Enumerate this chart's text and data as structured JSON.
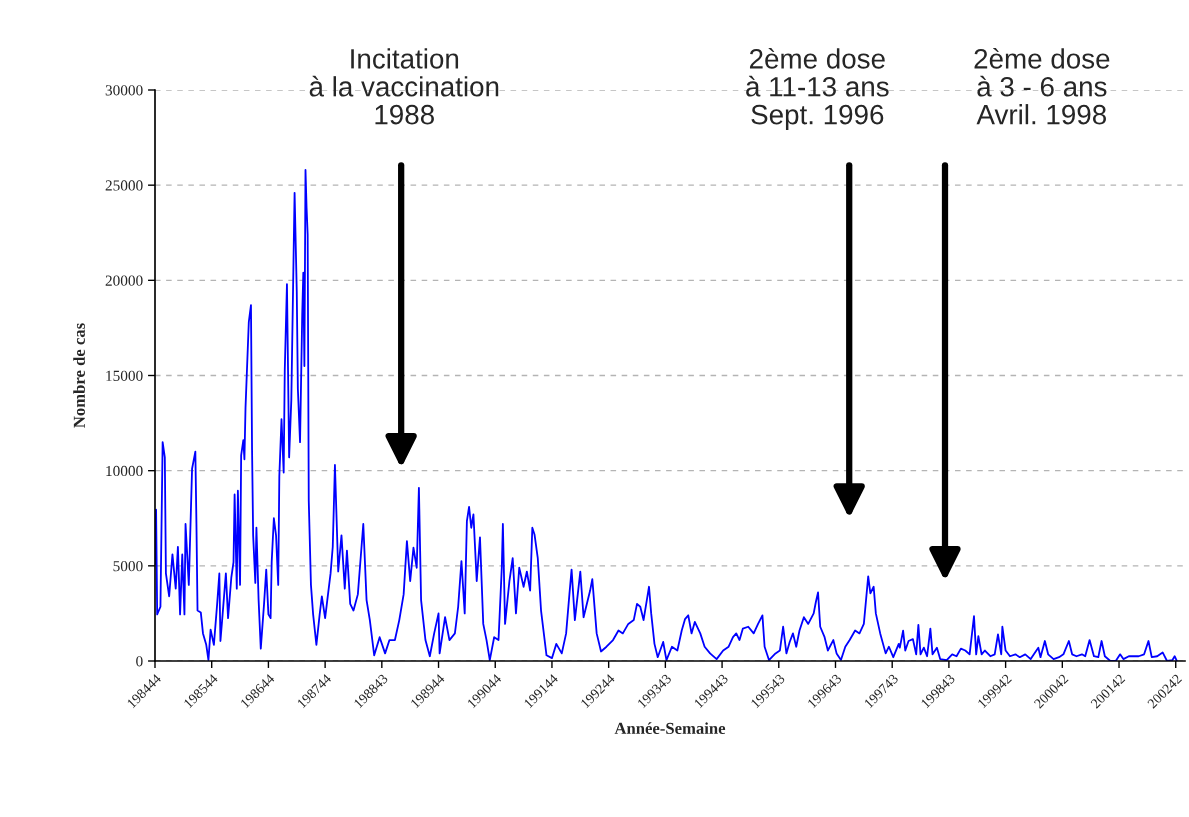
{
  "chart_data": {
    "type": "line",
    "xlabel": "Année-Semaine",
    "ylabel": "Nombre de cas",
    "ylim": [
      0,
      30000
    ],
    "yticks": [
      0,
      5000,
      10000,
      15000,
      20000,
      25000,
      30000
    ],
    "grid": "y",
    "annotations": [
      "Incitation\nà la vaccination\n1988",
      "2ème dose\nà 11-13 ans\nSept. 1996",
      "2ème dose\nà 3 - 6 ans\nAvril. 1998"
    ],
    "categories": [
      "198444",
      null,
      null,
      null,
      null,
      null,
      null,
      null,
      null,
      null,
      null,
      null,
      null,
      null,
      null,
      null,
      null,
      null,
      null,
      null,
      null,
      null,
      null,
      null,
      null,
      null,
      null,
      null,
      null,
      null,
      null,
      null,
      null,
      null,
      null,
      null,
      null,
      null,
      null,
      null,
      null,
      null,
      null,
      null,
      null,
      null,
      null,
      null,
      null,
      null,
      null,
      null,
      "198544",
      null,
      null,
      null,
      null,
      null,
      null,
      null,
      null,
      null,
      null,
      null,
      null,
      null,
      null,
      null,
      null,
      null,
      null,
      null,
      null,
      null,
      null,
      null,
      null,
      null,
      null,
      null,
      null,
      null,
      null,
      null,
      null,
      null,
      null,
      null,
      null,
      null,
      null,
      null,
      null,
      null,
      null,
      null,
      null,
      null,
      null,
      null,
      null,
      null,
      null,
      null,
      "198644",
      null,
      null,
      null,
      null,
      null,
      null,
      null,
      null,
      null,
      null,
      null,
      null,
      null,
      null,
      null,
      null,
      null,
      null,
      null,
      null,
      null,
      null,
      null,
      null,
      null,
      null,
      null,
      null,
      null,
      null,
      null,
      null,
      null,
      null,
      null,
      null,
      null,
      null,
      null,
      null,
      null,
      null,
      null,
      null,
      null,
      null,
      null,
      null,
      null,
      null,
      null,
      "198744",
      null,
      null,
      null,
      null,
      null,
      null,
      null,
      null,
      null,
      null,
      null,
      null,
      null,
      null,
      null,
      null,
      null,
      null,
      null,
      null,
      null,
      null,
      null,
      null,
      null,
      null,
      null,
      null,
      null,
      null,
      null,
      null,
      null,
      null,
      null,
      null,
      null,
      null,
      null,
      null,
      null,
      null,
      null,
      null,
      null,
      null,
      null,
      null,
      null,
      null,
      null,
      "198843",
      null,
      null,
      null,
      null,
      null,
      null,
      null,
      null,
      null,
      null,
      null,
      null,
      null,
      null,
      null,
      null,
      null,
      null,
      null,
      null,
      null,
      null,
      null,
      null,
      null,
      null,
      null,
      null,
      null,
      null,
      null,
      null,
      null,
      null,
      null,
      null,
      null,
      null,
      null,
      null,
      null,
      null,
      null,
      null,
      null,
      null,
      null,
      null,
      null,
      null,
      null,
      "198944",
      null,
      null,
      null,
      null,
      null,
      null,
      null,
      null,
      null,
      null,
      null,
      null,
      null,
      null,
      null,
      null,
      null,
      null,
      null,
      null,
      null,
      null,
      null,
      null,
      null,
      null,
      null,
      null,
      null,
      null,
      null,
      null,
      null,
      null,
      null,
      null,
      null,
      null,
      null,
      null,
      null,
      null,
      null,
      null,
      null,
      null,
      null,
      null,
      null,
      null,
      null,
      "199044",
      null,
      null,
      null,
      null,
      null,
      null,
      null,
      null,
      null,
      null,
      null,
      null,
      null,
      null,
      null,
      null,
      null,
      null,
      null,
      null,
      null,
      null,
      null,
      null,
      null,
      null,
      null,
      null,
      null,
      null,
      null,
      null,
      null,
      null,
      null,
      null,
      null,
      null,
      null,
      null,
      null,
      null,
      null,
      null,
      null,
      null,
      null,
      null,
      null,
      null,
      null,
      "199144",
      null,
      null,
      null,
      null,
      null,
      null,
      null,
      null,
      null,
      null,
      null,
      null,
      null,
      null,
      null,
      null,
      null,
      null,
      null,
      null,
      null,
      null,
      null,
      null,
      null,
      null,
      null,
      null,
      null,
      null,
      null,
      null,
      null,
      null,
      null,
      null,
      null,
      null,
      null,
      null,
      null,
      null,
      null,
      null,
      null,
      null,
      null,
      null,
      null,
      null,
      null,
      "199244",
      null,
      null,
      null,
      null,
      null,
      null,
      null,
      null,
      null,
      null,
      null,
      null,
      null,
      null,
      null,
      null,
      null,
      null,
      null,
      null,
      null,
      null,
      null,
      null,
      null,
      null,
      null,
      null,
      null,
      null,
      null,
      null,
      null,
      null,
      null,
      null,
      null,
      null,
      null,
      null,
      null,
      null,
      null,
      null,
      null,
      null,
      null,
      null,
      null,
      null,
      null,
      "199343",
      null,
      null,
      null,
      null,
      null,
      null,
      null,
      null,
      null,
      null,
      null,
      null,
      null,
      null,
      null,
      null,
      null,
      null,
      null,
      null,
      null,
      null,
      null,
      null,
      null,
      null,
      null,
      null,
      null,
      null,
      null,
      null,
      null,
      null,
      null,
      null,
      null,
      null,
      null,
      null,
      null,
      null,
      null,
      null,
      null,
      null,
      null,
      null,
      null,
      null,
      null,
      "199443",
      null,
      null,
      null,
      null,
      null,
      null,
      null,
      null,
      null,
      null,
      null,
      null,
      null,
      null,
      null,
      null,
      null,
      null,
      null,
      null,
      null,
      null,
      null,
      null,
      null,
      null,
      null,
      null,
      null,
      null,
      null,
      null,
      null,
      null,
      null,
      null,
      null,
      null,
      null,
      null,
      null,
      null,
      null,
      null,
      null,
      null,
      null,
      null,
      null,
      null,
      null,
      "199543",
      null,
      null,
      null,
      null,
      null,
      null,
      null,
      null,
      null,
      null,
      null,
      null,
      null,
      null,
      null,
      null,
      null,
      null,
      null,
      null,
      null,
      null,
      null,
      null,
      null,
      null,
      null,
      null,
      null,
      null,
      null,
      null,
      null,
      null,
      null,
      null,
      null,
      null,
      null,
      null,
      null,
      null,
      null,
      null,
      null,
      null,
      null,
      null,
      null,
      null,
      null,
      "199643",
      null,
      null,
      null,
      null,
      null,
      null,
      null,
      null,
      null,
      null,
      null,
      null,
      null,
      null,
      null,
      null,
      null,
      null,
      null,
      null,
      null,
      null,
      null,
      null,
      null,
      null,
      null,
      null,
      null,
      null,
      null,
      null,
      null,
      null,
      null,
      null,
      null,
      null,
      null,
      null,
      null,
      null,
      null,
      null,
      null,
      null,
      null,
      null,
      null,
      null,
      null,
      "199743",
      null,
      null,
      null,
      null,
      null,
      null,
      null,
      null,
      null,
      null,
      null,
      null,
      null,
      null,
      null,
      null,
      null,
      null,
      null,
      null,
      null,
      null,
      null,
      null,
      null,
      null,
      null,
      null,
      null,
      null,
      null,
      null,
      null,
      null,
      null,
      null,
      null,
      null,
      null,
      null,
      null,
      null,
      null,
      null,
      null,
      null,
      null,
      null,
      null,
      null,
      null,
      "199843",
      null,
      null,
      null,
      null,
      null,
      null,
      null,
      null,
      null,
      null,
      null,
      null,
      null,
      null,
      null,
      null,
      null,
      null,
      null,
      null,
      null,
      null,
      null,
      null,
      null,
      null,
      null,
      null,
      null,
      null,
      null,
      null,
      null,
      null,
      null,
      null,
      null,
      null,
      null,
      null,
      null,
      null,
      null,
      null,
      null,
      null,
      null,
      null,
      null,
      null,
      null,
      "199942",
      null,
      null,
      null,
      null,
      null,
      null,
      null,
      null,
      null,
      null,
      null,
      null,
      null,
      null,
      null,
      null,
      null,
      null,
      null,
      null,
      null,
      null,
      null,
      null,
      null,
      null,
      null,
      null,
      null,
      null,
      null,
      null,
      null,
      null,
      null,
      null,
      null,
      null,
      null,
      null,
      null,
      null,
      null,
      null,
      null,
      null,
      null,
      null,
      null,
      null,
      null,
      "200042",
      null,
      null,
      null,
      null,
      null,
      null,
      null,
      null,
      null,
      null,
      null,
      null,
      null,
      null,
      null,
      null,
      null,
      null,
      null,
      null,
      null,
      null,
      null,
      null,
      null,
      null,
      null,
      null,
      null,
      null,
      null,
      null,
      null,
      null,
      null,
      null,
      null,
      null,
      null,
      null,
      null,
      null,
      null,
      null,
      null,
      null,
      null,
      null,
      null,
      null,
      null,
      "200142",
      null,
      null,
      null,
      null,
      null,
      null,
      null,
      null,
      null,
      null,
      null,
      null,
      null,
      null,
      null,
      null,
      null,
      null,
      null,
      null,
      null,
      null,
      null,
      null,
      null,
      null,
      null,
      null,
      null,
      null,
      null,
      null,
      null,
      null,
      null,
      null,
      null,
      null,
      null,
      null,
      null,
      null,
      null,
      null,
      null,
      null,
      null,
      null,
      null,
      null,
      null,
      "200242",
      null
    ],
    "series": [
      {
        "color": "#0000ff",
        "values": [
          5100,
          7950,
          2450,
          null,
          null,
          2850,
          null,
          11500,
          null,
          10700,
          4600,
          null,
          null,
          3400,
          null,
          null,
          5600,
          null,
          null,
          3800,
          null,
          6000,
          null,
          2450,
          null,
          5600,
          null,
          2450,
          7200,
          null,
          null,
          4000,
          null,
          null,
          10100,
          null,
          null,
          11000,
          7200,
          2650,
          null,
          null,
          2550,
          null,
          1450,
          null,
          null,
          850,
          null,
          50,
          null,
          1650,
          null,
          null,
          850,
          null,
          null,
          3000,
          null,
          4600,
          1050,
          null,
          2450,
          null,
          null,
          4600,
          null,
          2250,
          null,
          null,
          4400,
          null,
          5200,
          8750,
          null,
          3800,
          8950,
          null,
          4000,
          10800,
          null,
          11600,
          10600,
          13300,
          null,
          16300,
          17800,
          null,
          18700,
          11100,
          6600,
          null,
          4100,
          7000,
          null,
          3200,
          null,
          650,
          null,
          null,
          3000,
          null,
          4800,
          null,
          2450,
          null,
          2250,
          5200,
          null,
          7500,
          null,
          6600,
          null,
          4000,
          9700,
          null,
          12700,
          null,
          9900,
          15300,
          null,
          19800,
          null,
          10700,
          null,
          13700,
          null,
          21000,
          24600,
          null,
          19400,
          14300,
          null,
          11500,
          null,
          18200,
          20400,
          15500,
          25800,
          23800,
          22400,
          8400,
          null,
          4000,
          null,
          2450,
          null,
          null,
          850,
          null,
          null,
          2450,
          null,
          3400,
          null,
          null,
          2250,
          null,
          3200,
          null,
          null,
          4600,
          null,
          6000,
          null,
          10300,
          null,
          null,
          4700,
          null,
          null,
          6600,
          null,
          null,
          3800,
          null,
          5800,
          null,
          null,
          3000,
          null,
          null,
          2650,
          null,
          null,
          null,
          3500,
          null,
          null,
          null,
          null,
          7200,
          null,
          null,
          3200,
          null,
          null,
          2150,
          null,
          null,
          null,
          300,
          null,
          null,
          null,
          null,
          1250,
          null,
          null,
          null,
          null,
          400,
          null,
          null,
          null,
          1100,
          null,
          null,
          null,
          null,
          1100,
          null,
          null,
          null,
          2150,
          null,
          null,
          null,
          3500,
          null,
          null,
          6300,
          null,
          null,
          4200,
          null,
          null,
          5950,
          null,
          null,
          4900,
          null,
          9100,
          null,
          3200,
          null,
          null,
          null,
          1100,
          null,
          null,
          null,
          250,
          null,
          null,
          null,
          1450,
          null,
          null,
          null,
          2500,
          400,
          null,
          null,
          null,
          null,
          2300,
          null,
          null,
          null,
          1100,
          null,
          null,
          null,
          null,
          1450,
          null,
          null,
          2850,
          null,
          null,
          5250,
          null,
          null,
          2500,
          null,
          7350,
          null,
          8100,
          null,
          7000,
          null,
          7700,
          null,
          null,
          4200,
          null,
          null,
          6500,
          null,
          null,
          1950,
          null,
          null,
          1100,
          null,
          null,
          50,
          null,
          null,
          null,
          1250,
          null,
          null,
          null,
          1100,
          null,
          null,
          4900,
          7200,
          null,
          1950,
          null,
          null,
          null,
          4200,
          null,
          null,
          5400,
          null,
          null,
          2500,
          null,
          null,
          4900,
          null,
          null,
          null,
          3900,
          null,
          null,
          4700,
          null,
          null,
          3700,
          null,
          7000,
          null,
          6650,
          null,
          null,
          5400,
          null,
          null,
          2650,
          null,
          null,
          null,
          null,
          300,
          null,
          null,
          null,
          null,
          150,
          null,
          null,
          null,
          900,
          null,
          null,
          null,
          null,
          400,
          null,
          null,
          null,
          1450,
          null,
          null,
          3500,
          null,
          4800,
          null,
          null,
          2150,
          null,
          null,
          null,
          null,
          4700,
          null,
          null,
          2300,
          null,
          null,
          null,
          null,
          null,
          3700,
          null,
          4300,
          null,
          null,
          null,
          1450,
          null,
          null,
          null,
          500,
          null,
          null,
          null,
          null,
          750,
          null,
          null,
          null,
          null,
          null,
          1100,
          null,
          null,
          null,
          null,
          1600,
          null,
          null,
          null,
          1450,
          null,
          null,
          null,
          null,
          1950,
          null,
          null,
          null,
          null,
          2150,
          null,
          null,
          3000,
          null,
          null,
          2850,
          null,
          null,
          2150,
          null,
          null,
          3200,
          null,
          3900,
          null,
          2500,
          null,
          null,
          900,
          null,
          null,
          200,
          null,
          null,
          null,
          null,
          1000,
          null,
          null,
          50,
          null,
          null,
          null,
          null,
          750,
          null,
          null,
          null,
          null,
          550,
          null,
          null,
          null,
          1600,
          null,
          null,
          2200,
          null,
          null,
          2400,
          null,
          null,
          1450,
          null,
          null,
          2050,
          null,
          null,
          null,
          null,
          1450,
          null,
          null,
          null,
          750,
          null,
          null,
          null,
          null,
          400,
          null,
          null,
          null,
          null,
          null,
          100,
          null,
          null,
          null,
          null,
          null,
          550,
          null,
          null,
          null,
          null,
          750,
          null,
          null,
          null,
          1250,
          null,
          null,
          1450,
          null,
          null,
          1100,
          null,
          null,
          1700,
          null,
          null,
          null,
          null,
          1800,
          null,
          null,
          null,
          null,
          1450,
          null,
          null,
          null,
          1950,
          null,
          null,
          null,
          2400,
          null,
          750,
          null,
          null,
          null,
          50,
          null,
          null,
          null,
          null,
          null,
          400,
          null,
          null,
          null,
          550,
          null,
          null,
          1800,
          null,
          null,
          400,
          null,
          null,
          1000,
          null,
          null,
          1450,
          null,
          null,
          750,
          null,
          null,
          1600,
          null,
          null,
          null,
          2300,
          null,
          null,
          null,
          1950,
          null,
          null,
          null,
          null,
          2500,
          null,
          3100,
          null,
          3600,
          null,
          1800,
          null,
          null,
          null,
          1250,
          null,
          null,
          550,
          null,
          null,
          null,
          null,
          1100,
          null,
          null,
          400,
          null,
          null,
          null,
          50,
          null,
          null,
          null,
          750,
          null,
          null,
          null,
          1100,
          null,
          null,
          null,
          null,
          1600,
          null,
          null,
          null,
          1450,
          null,
          null,
          null,
          1950,
          null,
          3200,
          null,
          4450,
          null,
          3550,
          null,
          null,
          3900,
          null,
          2500,
          null,
          null,
          null,
          1450,
          null,
          null,
          null,
          null,
          400,
          null,
          null,
          750,
          null,
          null,
          null,
          200,
          null,
          null,
          null,
          null,
          900,
          700,
          null,
          null,
          1600,
          null,
          550,
          null,
          null,
          1050,
          null,
          null,
          null,
          1150,
          null,
          null,
          350,
          null,
          1900,
          null,
          350,
          null,
          null,
          700,
          null,
          null,
          250,
          null,
          null,
          1700,
          null,
          350,
          null,
          null,
          null,
          700,
          null,
          null,
          100,
          null,
          null,
          null,
          null,
          null,
          50,
          null,
          null,
          null,
          null,
          350,
          null,
          null,
          null,
          250,
          null,
          null,
          null,
          650,
          null,
          null,
          null,
          550,
          null,
          null,
          null,
          350,
          null,
          null,
          null,
          2350,
          null,
          350,
          null,
          1300,
          null,
          null,
          350,
          null,
          null,
          550,
          null,
          null,
          null,
          null,
          250,
          null,
          null,
          null,
          350,
          null,
          null,
          1400,
          null,
          null,
          350,
          1800,
          null,
          null,
          550,
          null,
          null,
          null,
          250,
          null,
          null,
          null,
          null,
          350,
          null,
          null,
          null,
          200,
          null,
          null,
          null,
          null,
          350,
          null,
          null,
          null,
          null,
          100,
          null,
          null,
          null,
          450,
          null,
          null,
          700,
          null,
          200,
          null,
          null,
          null,
          1050,
          null,
          null,
          350,
          null,
          null,
          null,
          null,
          100,
          null,
          null,
          null,
          null,
          200,
          null,
          null,
          null,
          350,
          null,
          null,
          null,
          null,
          1050,
          null,
          null,
          350,
          null,
          null,
          null,
          250,
          null,
          null,
          null,
          null,
          350,
          null,
          null,
          250,
          null,
          null,
          null,
          1100,
          null,
          null,
          null,
          250,
          null,
          null,
          null,
          200,
          null,
          null,
          1050,
          null,
          null,
          250,
          null,
          null,
          null,
          null,
          0,
          null,
          null,
          null,
          null,
          0,
          null,
          null,
          null,
          350,
          null,
          null,
          100,
          null,
          null,
          null,
          null,
          250,
          null,
          null,
          null,
          250,
          null,
          null,
          null,
          null,
          250,
          null,
          null,
          null,
          null,
          350,
          null,
          null,
          null,
          1050,
          null,
          null,
          200,
          null,
          null,
          null,
          null,
          250,
          null,
          null,
          null,
          null,
          450,
          null,
          null,
          null,
          0,
          null,
          null,
          null,
          null,
          50,
          null,
          250,
          null,
          0
        ]
      }
    ]
  }
}
